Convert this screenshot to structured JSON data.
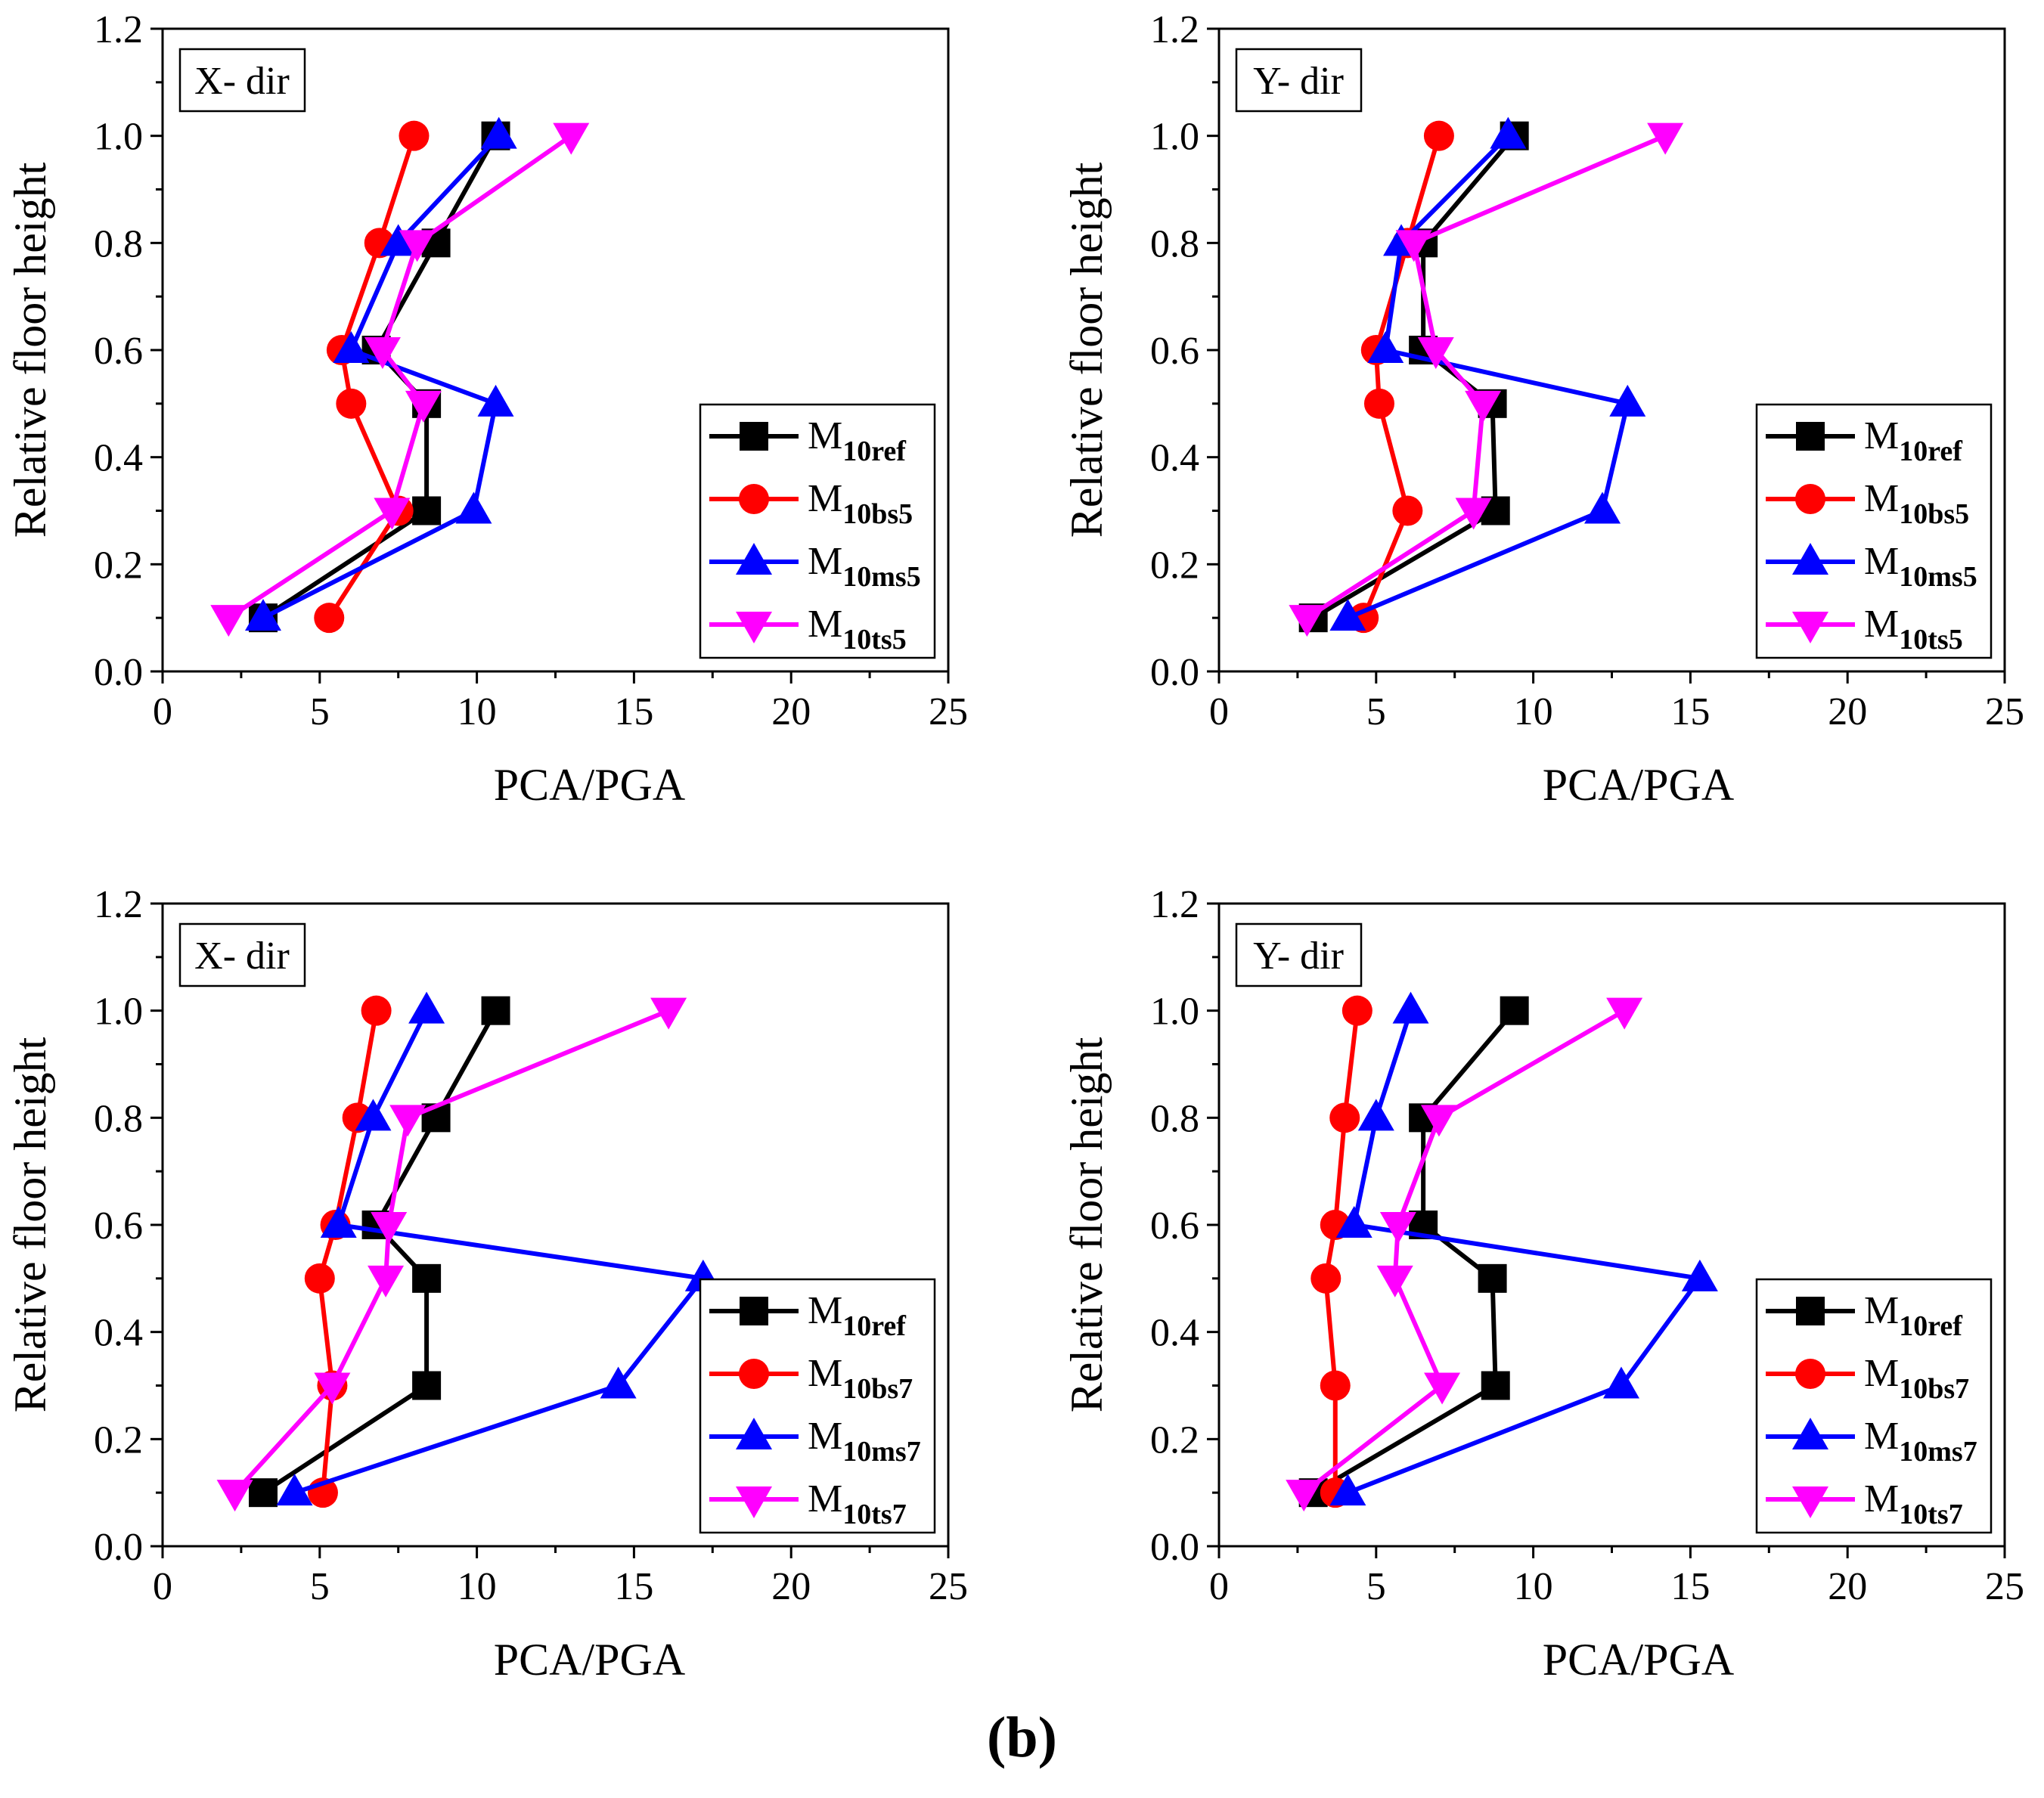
{
  "figure_label": "(b)",
  "colors": {
    "ref": "#000000",
    "bs": "#ff0000",
    "ms": "#0000ff",
    "ts": "#ff00ff"
  },
  "chart_data": [
    {
      "type": "line",
      "direction_label": "X- dir",
      "xlabel": "PCA/PGA",
      "ylabel": "Relative floor height",
      "xlim": [
        0,
        25
      ],
      "ylim": [
        0.0,
        1.2
      ],
      "xticks": [
        "0",
        "5",
        "10",
        "15",
        "20",
        "25"
      ],
      "yticks": [
        "0.0",
        "0.2",
        "0.4",
        "0.6",
        "0.8",
        "1.0",
        "1.2"
      ],
      "legend_position": "lower-right",
      "series": [
        {
          "name": "M",
          "sub": "10ref",
          "key": "ref",
          "marker": "square",
          "x": [
            3.2,
            8.4,
            8.4,
            6.8,
            8.7,
            10.6
          ],
          "y": [
            0.1,
            0.3,
            0.5,
            0.6,
            0.8,
            1.0
          ]
        },
        {
          "name": "M",
          "sub": "10bs5",
          "key": "bs",
          "marker": "circle",
          "x": [
            5.3,
            7.5,
            6.0,
            5.7,
            6.9,
            8.0
          ],
          "y": [
            0.1,
            0.3,
            0.5,
            0.6,
            0.8,
            1.0
          ]
        },
        {
          "name": "M",
          "sub": "10ms5",
          "key": "ms",
          "marker": "triangle-up",
          "x": [
            3.2,
            9.9,
            10.6,
            6.0,
            7.5,
            10.7
          ],
          "y": [
            0.1,
            0.3,
            0.5,
            0.6,
            0.8,
            1.0
          ]
        },
        {
          "name": "M",
          "sub": "10ts5",
          "key": "ts",
          "marker": "triangle-down",
          "x": [
            2.1,
            7.3,
            8.3,
            7.0,
            8.1,
            13.0
          ],
          "y": [
            0.1,
            0.3,
            0.5,
            0.6,
            0.8,
            1.0
          ]
        }
      ]
    },
    {
      "type": "line",
      "direction_label": "Y- dir",
      "xlabel": "PCA/PGA",
      "ylabel": "Relative floor height",
      "xlim": [
        0,
        25
      ],
      "ylim": [
        0.0,
        1.2
      ],
      "xticks": [
        "0",
        "5",
        "10",
        "15",
        "20",
        "25"
      ],
      "yticks": [
        "0.0",
        "0.2",
        "0.4",
        "0.6",
        "0.8",
        "1.0",
        "1.2"
      ],
      "legend_position": "lower-right",
      "series": [
        {
          "name": "M",
          "sub": "10ref",
          "key": "ref",
          "marker": "square",
          "x": [
            3.0,
            8.8,
            8.7,
            6.5,
            6.5,
            9.4
          ],
          "y": [
            0.1,
            0.3,
            0.5,
            0.6,
            0.8,
            1.0
          ]
        },
        {
          "name": "M",
          "sub": "10bs5",
          "key": "bs",
          "marker": "circle",
          "x": [
            4.6,
            6.0,
            5.1,
            5.0,
            6.0,
            7.0
          ],
          "y": [
            0.1,
            0.3,
            0.5,
            0.6,
            0.8,
            1.0
          ]
        },
        {
          "name": "M",
          "sub": "10ms5",
          "key": "ms",
          "marker": "triangle-up",
          "x": [
            4.1,
            12.2,
            13.0,
            5.3,
            5.8,
            9.2
          ],
          "y": [
            0.1,
            0.3,
            0.5,
            0.6,
            0.8,
            1.0
          ]
        },
        {
          "name": "M",
          "sub": "10ts5",
          "key": "ts",
          "marker": "triangle-down",
          "x": [
            2.8,
            8.1,
            8.4,
            6.9,
            6.2,
            14.2
          ],
          "y": [
            0.1,
            0.3,
            0.5,
            0.6,
            0.8,
            1.0
          ]
        }
      ]
    },
    {
      "type": "line",
      "direction_label": "X- dir",
      "xlabel": "PCA/PGA",
      "ylabel": "Relative floor height",
      "xlim": [
        0,
        25
      ],
      "ylim": [
        0.0,
        1.2
      ],
      "xticks": [
        "0",
        "5",
        "10",
        "15",
        "20",
        "25"
      ],
      "yticks": [
        "0.0",
        "0.2",
        "0.4",
        "0.6",
        "0.8",
        "1.0",
        "1.2"
      ],
      "legend_position": "lower-right",
      "series": [
        {
          "name": "M",
          "sub": "10ref",
          "key": "ref",
          "marker": "square",
          "x": [
            3.2,
            8.4,
            8.4,
            6.8,
            8.7,
            10.6
          ],
          "y": [
            0.1,
            0.3,
            0.5,
            0.6,
            0.8,
            1.0
          ]
        },
        {
          "name": "M",
          "sub": "10bs7",
          "key": "bs",
          "marker": "circle",
          "x": [
            5.1,
            5.4,
            5.0,
            5.5,
            6.2,
            6.8
          ],
          "y": [
            0.1,
            0.3,
            0.5,
            0.6,
            0.8,
            1.0
          ]
        },
        {
          "name": "M",
          "sub": "10ms7",
          "key": "ms",
          "marker": "triangle-up",
          "x": [
            4.2,
            14.5,
            17.2,
            5.6,
            6.7,
            8.4
          ],
          "y": [
            0.1,
            0.3,
            0.5,
            0.6,
            0.8,
            1.0
          ]
        },
        {
          "name": "M",
          "sub": "10ts7",
          "key": "ts",
          "marker": "triangle-down",
          "x": [
            2.3,
            5.4,
            7.1,
            7.2,
            7.8,
            16.1
          ],
          "y": [
            0.1,
            0.3,
            0.5,
            0.6,
            0.8,
            1.0
          ]
        }
      ]
    },
    {
      "type": "line",
      "direction_label": "Y- dir",
      "xlabel": "PCA/PGA",
      "ylabel": "Relative floor height",
      "xlim": [
        0,
        25
      ],
      "ylim": [
        0.0,
        1.2
      ],
      "xticks": [
        "0",
        "5",
        "10",
        "15",
        "20",
        "25"
      ],
      "yticks": [
        "0.0",
        "0.2",
        "0.4",
        "0.6",
        "0.8",
        "1.0",
        "1.2"
      ],
      "legend_position": "lower-right",
      "series": [
        {
          "name": "M",
          "sub": "10ref",
          "key": "ref",
          "marker": "square",
          "x": [
            3.0,
            8.8,
            8.7,
            6.5,
            6.5,
            9.4
          ],
          "y": [
            0.1,
            0.3,
            0.5,
            0.6,
            0.8,
            1.0
          ]
        },
        {
          "name": "M",
          "sub": "10bs7",
          "key": "bs",
          "marker": "circle",
          "x": [
            3.7,
            3.7,
            3.4,
            3.7,
            4.0,
            4.4
          ],
          "y": [
            0.1,
            0.3,
            0.5,
            0.6,
            0.8,
            1.0
          ]
        },
        {
          "name": "M",
          "sub": "10ms7",
          "key": "ms",
          "marker": "triangle-up",
          "x": [
            4.1,
            12.8,
            15.3,
            4.3,
            5.0,
            6.1
          ],
          "y": [
            0.1,
            0.3,
            0.5,
            0.6,
            0.8,
            1.0
          ]
        },
        {
          "name": "M",
          "sub": "10ts7",
          "key": "ts",
          "marker": "triangle-down",
          "x": [
            2.7,
            7.1,
            5.6,
            5.7,
            7.0,
            12.9
          ],
          "y": [
            0.1,
            0.3,
            0.5,
            0.6,
            0.8,
            1.0
          ]
        }
      ]
    }
  ]
}
